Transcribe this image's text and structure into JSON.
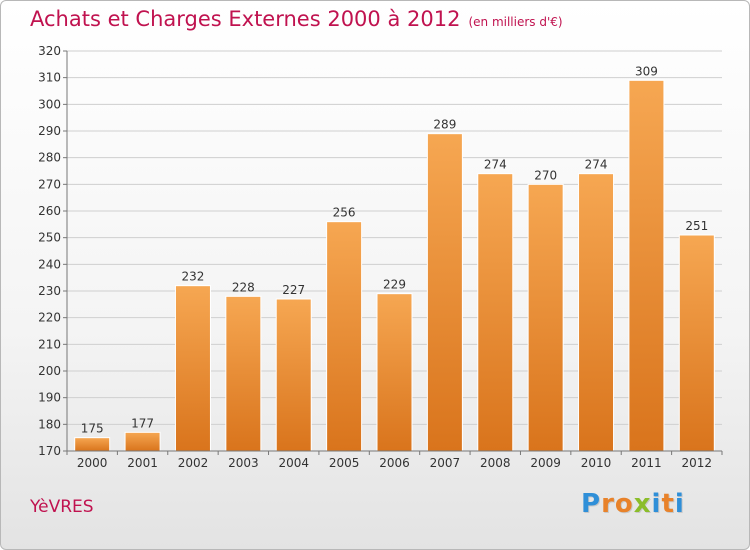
{
  "title": "Achats et Charges Externes 2000 à 2012",
  "unit": "(en milliers d'€)",
  "commune": "YèVRES",
  "logo": {
    "letters": [
      "P",
      "r",
      "o",
      "x",
      "i",
      "t",
      "i"
    ],
    "colors": [
      "#2f8fd8",
      "#e8822a",
      "#e8822a",
      "#8bbd2a",
      "#2f8fd8",
      "#e8822a",
      "#2f8fd8"
    ]
  },
  "chart_data": {
    "type": "bar",
    "title": "Achats et Charges Externes 2000 à 2012",
    "xlabel": "",
    "ylabel": "",
    "categories": [
      "2000",
      "2001",
      "2002",
      "2003",
      "2004",
      "2005",
      "2006",
      "2007",
      "2008",
      "2009",
      "2010",
      "2011",
      "2012"
    ],
    "values": [
      175,
      177,
      232,
      228,
      227,
      256,
      229,
      289,
      274,
      270,
      274,
      309,
      251
    ],
    "ylim": [
      170,
      320
    ],
    "yticks": [
      170,
      180,
      190,
      200,
      210,
      220,
      230,
      240,
      250,
      260,
      270,
      280,
      290,
      300,
      310,
      320
    ],
    "grid": true,
    "bar_color": "#f0963c"
  }
}
